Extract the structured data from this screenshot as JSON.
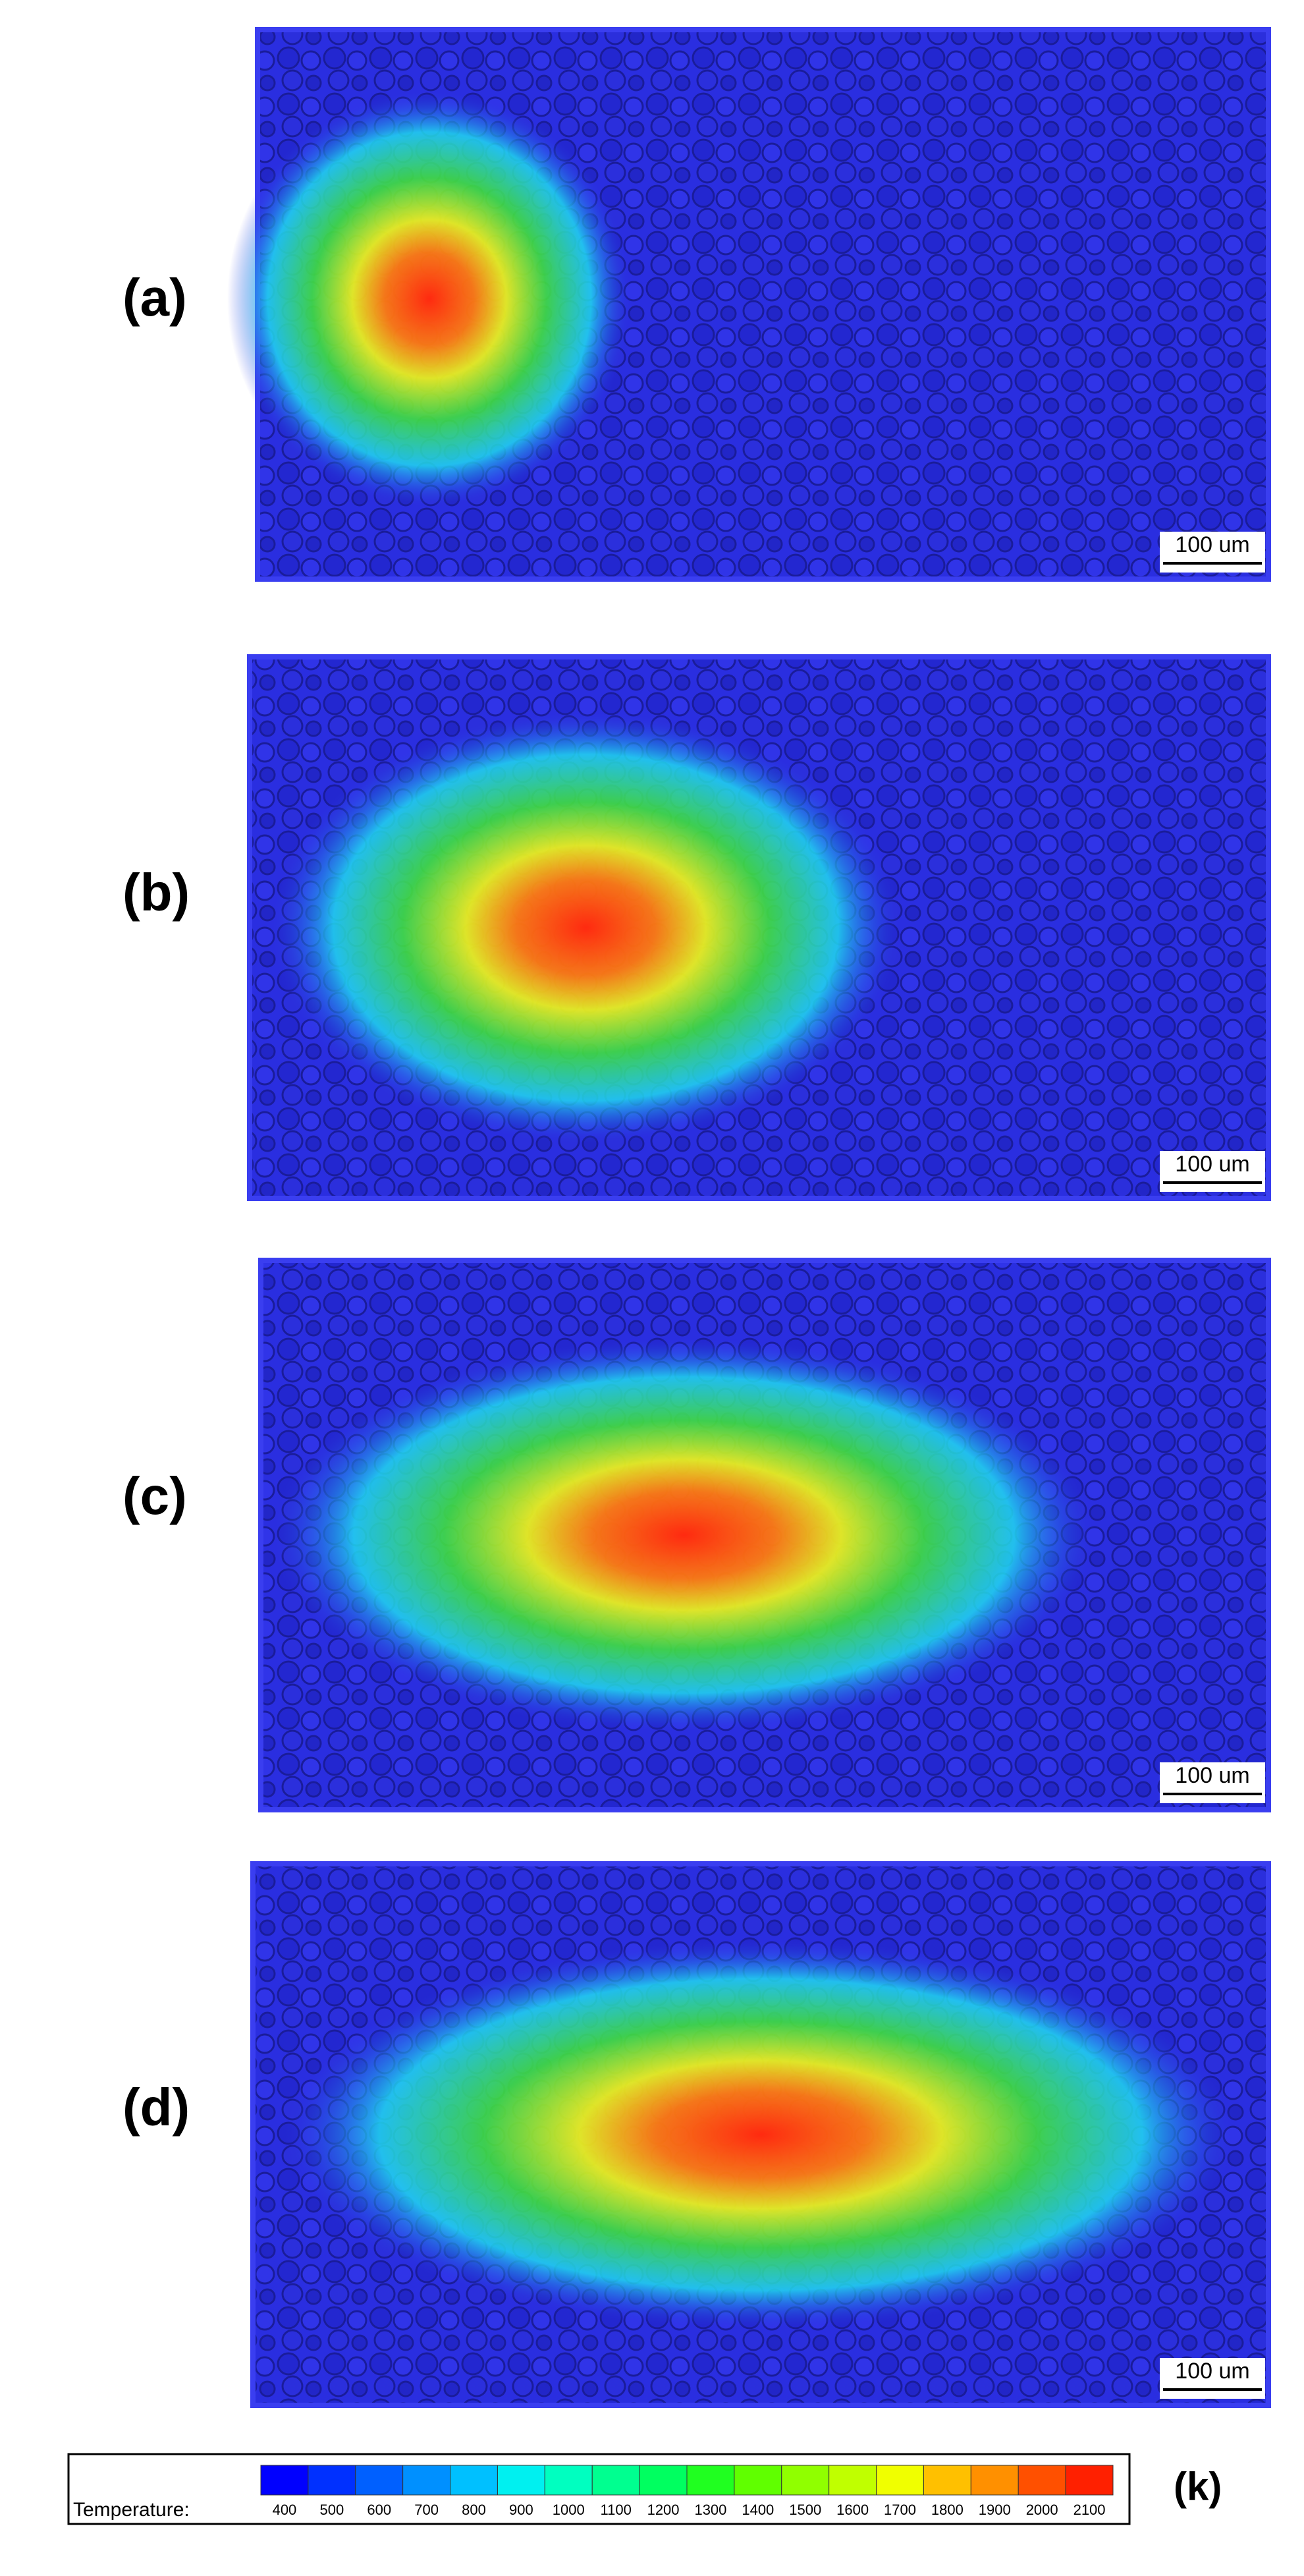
{
  "panels": [
    {
      "label": "(a)",
      "scale_bar": "100 um"
    },
    {
      "label": "(b)",
      "scale_bar": "100 um"
    },
    {
      "label": "(c)",
      "scale_bar": "100 um"
    },
    {
      "label": "(d)",
      "scale_bar": "100 um"
    }
  ],
  "colorbar": {
    "title": "Temperature:",
    "unit": "(k)",
    "ticks": [
      400,
      500,
      600,
      700,
      800,
      900,
      1000,
      1100,
      1200,
      1300,
      1400,
      1500,
      1600,
      1700,
      1800,
      1900,
      2000,
      2100
    ],
    "colors": [
      "#0000ff",
      "#0030ff",
      "#0060ff",
      "#0090ff",
      "#00c0ff",
      "#00f0f0",
      "#00ffc0",
      "#00ff90",
      "#00ff60",
      "#20ff20",
      "#60ff00",
      "#90ff00",
      "#c0ff00",
      "#f0ff00",
      "#ffc000",
      "#ff9000",
      "#ff5000",
      "#ff2000"
    ]
  }
}
